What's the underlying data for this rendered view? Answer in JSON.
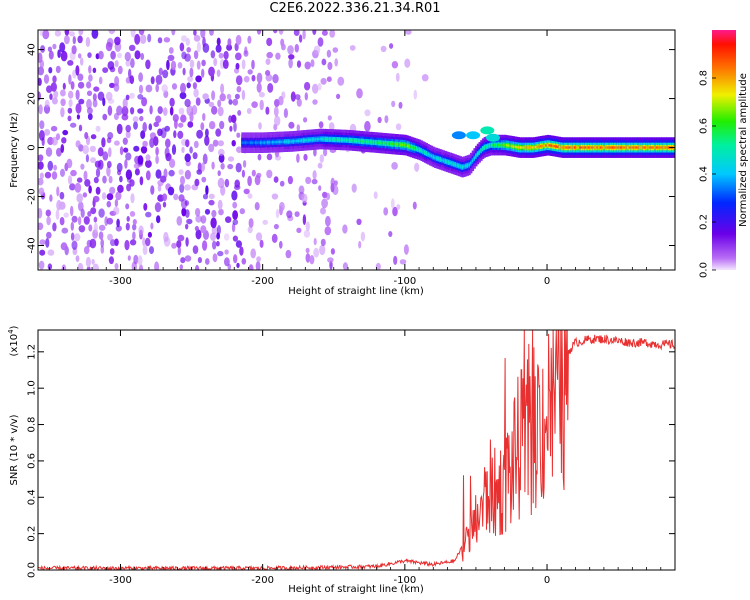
{
  "title": "C2E6.2022.336.21.34.R01",
  "chart_data": [
    {
      "type": "heatmap",
      "xlabel": "Height of straight line (km)",
      "ylabel": "Frequency (Hz)",
      "xlim": [
        -358,
        90
      ],
      "ylim": [
        -50,
        48
      ],
      "xticks": [
        -300,
        -200,
        -100,
        0
      ],
      "yticks": [
        -40,
        -20,
        0,
        20,
        40
      ],
      "colorbar": {
        "label": "Normalized spectral amplitude",
        "range": [
          0,
          1
        ],
        "ticks": [
          "0.0",
          "0.2",
          "0.4",
          "0.6",
          "0.8"
        ]
      },
      "ridge": {
        "x": [
          -215,
          -200,
          -180,
          -160,
          -140,
          -120,
          -110,
          -100,
          -90,
          -80,
          -70,
          -60,
          -55,
          -50,
          -45,
          -40,
          -30,
          -20,
          -10,
          0,
          10,
          30,
          60,
          90
        ],
        "freq": [
          2,
          2,
          2.5,
          3.5,
          3,
          2,
          1.5,
          1,
          -1,
          -4,
          -6,
          -8,
          -7,
          -3,
          0,
          1,
          1,
          0,
          0,
          1,
          0,
          0,
          0,
          0
        ],
        "amplitude": [
          0.35,
          0.4,
          0.45,
          0.5,
          0.55,
          0.6,
          0.65,
          0.7,
          0.55,
          0.45,
          0.5,
          0.5,
          0.45,
          0.5,
          0.55,
          0.55,
          0.7,
          0.8,
          0.85,
          0.9,
          0.9,
          0.9,
          0.9,
          0.9
        ]
      }
    },
    {
      "type": "line",
      "xlabel": "Height of straight line (km)",
      "ylabel": "SNR (10 * v/v)",
      "multiplier": "(x10",
      "multiplier_exp": "4",
      "xlim": [
        -358,
        90
      ],
      "ylim": [
        0,
        1.32
      ],
      "xticks": [
        -300,
        -200,
        -100,
        0
      ],
      "yticks": [
        "0.0",
        "0.2",
        "0.4",
        "0.6",
        "0.8",
        "1.0",
        "1.2"
      ],
      "series": [
        {
          "color": "#e83030",
          "x": [
            -358,
            -300,
            -250,
            -200,
            -150,
            -120,
            -100,
            -80,
            -65,
            -58,
            -52,
            -45,
            -40,
            -35,
            -30,
            -25,
            -20,
            -15,
            -10,
            -5,
            0,
            5,
            10,
            15,
            20,
            30,
            40,
            50,
            60,
            70,
            80,
            90
          ],
          "y": [
            0.01,
            0.01,
            0.01,
            0.01,
            0.015,
            0.02,
            0.05,
            0.03,
            0.05,
            0.15,
            0.25,
            0.4,
            0.5,
            0.45,
            0.55,
            0.6,
            0.75,
            0.8,
            0.85,
            0.9,
            0.95,
            1.05,
            1.15,
            1.2,
            1.25,
            1.27,
            1.27,
            1.26,
            1.25,
            1.25,
            1.24,
            1.24
          ]
        }
      ]
    }
  ]
}
